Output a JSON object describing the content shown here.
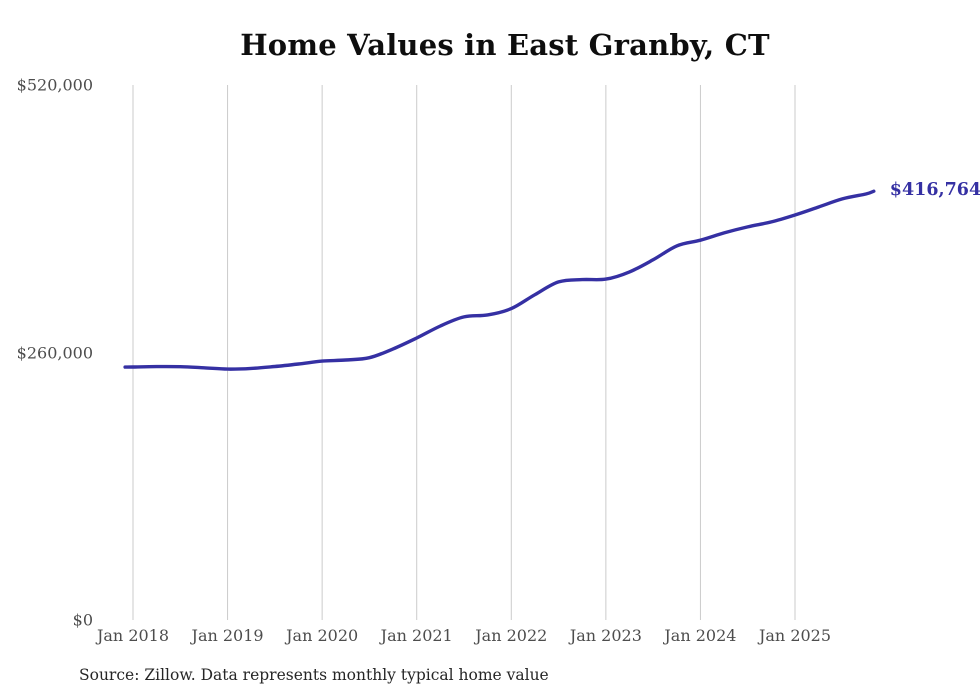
{
  "page": {
    "background": "#ffffff"
  },
  "chart_data": {
    "type": "line",
    "title": "Home Values in East Granby, CT",
    "source_note": "Source: Zillow. Data represents monthly typical home value",
    "end_label": "$416,764",
    "end_value": 416764,
    "grid_color": "#cbcbcb",
    "grid": "vertical-only",
    "legend": "none",
    "xlabel": "",
    "ylabel": "",
    "ylim": [
      0,
      520000
    ],
    "y_ticks": [
      {
        "label": "$520,000",
        "value": 520000
      },
      {
        "label": "$260,000",
        "value": 260000
      },
      {
        "label": "$0",
        "value": 0
      }
    ],
    "x_ticks": [
      {
        "label": "Jan 2018",
        "date": "2018-01"
      },
      {
        "label": "Jan 2019",
        "date": "2019-01"
      },
      {
        "label": "Jan 2020",
        "date": "2020-01"
      },
      {
        "label": "Jan 2021",
        "date": "2021-01"
      },
      {
        "label": "Jan 2022",
        "date": "2022-01"
      },
      {
        "label": "Jan 2023",
        "date": "2023-01"
      },
      {
        "label": "Jan 2024",
        "date": "2024-01"
      },
      {
        "label": "Jan 2025",
        "date": "2025-01"
      }
    ],
    "series": [
      {
        "name": "Monthly typical home value",
        "color": "#3530a3",
        "points": [
          {
            "date": "2017-12",
            "value": 245800
          },
          {
            "date": "2018-01",
            "value": 245900
          },
          {
            "date": "2018-04",
            "value": 246300
          },
          {
            "date": "2018-07",
            "value": 246200
          },
          {
            "date": "2018-10",
            "value": 245100
          },
          {
            "date": "2019-01",
            "value": 243900
          },
          {
            "date": "2019-04",
            "value": 244500
          },
          {
            "date": "2019-07",
            "value": 246400
          },
          {
            "date": "2019-10",
            "value": 248800
          },
          {
            "date": "2020-01",
            "value": 251600
          },
          {
            "date": "2020-04",
            "value": 252700
          },
          {
            "date": "2020-07",
            "value": 254900
          },
          {
            "date": "2020-10",
            "value": 263500
          },
          {
            "date": "2021-01",
            "value": 274100
          },
          {
            "date": "2021-04",
            "value": 285800
          },
          {
            "date": "2021-07",
            "value": 294600
          },
          {
            "date": "2021-10",
            "value": 296500
          },
          {
            "date": "2022-01",
            "value": 302700
          },
          {
            "date": "2022-04",
            "value": 316200
          },
          {
            "date": "2022-07",
            "value": 328600
          },
          {
            "date": "2022-10",
            "value": 330900
          },
          {
            "date": "2023-01",
            "value": 331300
          },
          {
            "date": "2023-04",
            "value": 338300
          },
          {
            "date": "2023-07",
            "value": 350100
          },
          {
            "date": "2023-10",
            "value": 363600
          },
          {
            "date": "2024-01",
            "value": 369200
          },
          {
            "date": "2024-04",
            "value": 376200
          },
          {
            "date": "2024-07",
            "value": 382100
          },
          {
            "date": "2024-10",
            "value": 386900
          },
          {
            "date": "2025-01",
            "value": 393600
          },
          {
            "date": "2025-04",
            "value": 401400
          },
          {
            "date": "2025-07",
            "value": 409300
          },
          {
            "date": "2025-10",
            "value": 414100
          },
          {
            "date": "2025-11",
            "value": 416764
          }
        ]
      }
    ]
  }
}
